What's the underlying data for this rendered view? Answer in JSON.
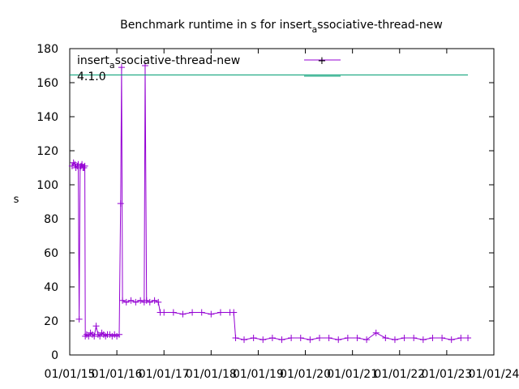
{
  "chart_data": {
    "type": "line",
    "title": {
      "before": "Benchmark runtime in s for insert",
      "sub": "a",
      "after": "ssociative-thread-new"
    },
    "ylabel": "s",
    "xlabel": "",
    "ylim": [
      0,
      180
    ],
    "yticks": [
      "0",
      "20",
      "40",
      "60",
      "80",
      "100",
      "120",
      "140",
      "160",
      "180"
    ],
    "xticks": [
      "01/01/15",
      "01/01/16",
      "01/01/17",
      "01/01/18",
      "01/01/19",
      "01/01/20",
      "01/01/21",
      "01/01/22",
      "01/01/23",
      "01/01/24"
    ],
    "xlim": [
      2015.0,
      2024.0
    ],
    "legend_position": "top-left",
    "series": [
      {
        "name": {
          "before": "insert",
          "sub": "a",
          "after": "ssociative-thread-new"
        },
        "color": "#9400d3",
        "marker": "plus",
        "points": [
          [
            2015.05,
            111
          ],
          [
            2015.08,
            113
          ],
          [
            2015.11,
            112
          ],
          [
            2015.13,
            110
          ],
          [
            2015.16,
            111
          ],
          [
            2015.18,
            112
          ],
          [
            2015.2,
            21
          ],
          [
            2015.22,
            110
          ],
          [
            2015.24,
            111
          ],
          [
            2015.26,
            112
          ],
          [
            2015.28,
            110
          ],
          [
            2015.3,
            110
          ],
          [
            2015.32,
            111
          ],
          [
            2015.33,
            11
          ],
          [
            2015.36,
            12
          ],
          [
            2015.4,
            11
          ],
          [
            2015.44,
            13
          ],
          [
            2015.48,
            12
          ],
          [
            2015.52,
            11
          ],
          [
            2015.56,
            17
          ],
          [
            2015.6,
            12
          ],
          [
            2015.64,
            11
          ],
          [
            2015.68,
            13
          ],
          [
            2015.72,
            12
          ],
          [
            2015.76,
            11
          ],
          [
            2015.8,
            12
          ],
          [
            2015.85,
            12
          ],
          [
            2015.9,
            11
          ],
          [
            2015.95,
            12
          ],
          [
            2016.0,
            11
          ],
          [
            2016.05,
            12
          ],
          [
            2016.08,
            89
          ],
          [
            2016.1,
            169
          ],
          [
            2016.12,
            32
          ],
          [
            2016.2,
            31
          ],
          [
            2016.3,
            32
          ],
          [
            2016.4,
            31
          ],
          [
            2016.5,
            32
          ],
          [
            2016.58,
            31
          ],
          [
            2016.6,
            170
          ],
          [
            2016.63,
            32
          ],
          [
            2016.7,
            31
          ],
          [
            2016.8,
            32
          ],
          [
            2016.88,
            31
          ],
          [
            2016.92,
            25
          ],
          [
            2017.0,
            25
          ],
          [
            2017.2,
            25
          ],
          [
            2017.4,
            24
          ],
          [
            2017.6,
            25
          ],
          [
            2017.8,
            25
          ],
          [
            2018.0,
            24
          ],
          [
            2018.2,
            25
          ],
          [
            2018.4,
            25
          ],
          [
            2018.48,
            25
          ],
          [
            2018.52,
            10
          ],
          [
            2018.7,
            9
          ],
          [
            2018.9,
            10
          ],
          [
            2019.1,
            9
          ],
          [
            2019.3,
            10
          ],
          [
            2019.5,
            9
          ],
          [
            2019.7,
            10
          ],
          [
            2019.9,
            10
          ],
          [
            2020.1,
            9
          ],
          [
            2020.3,
            10
          ],
          [
            2020.5,
            10
          ],
          [
            2020.7,
            9
          ],
          [
            2020.9,
            10
          ],
          [
            2021.1,
            10
          ],
          [
            2021.3,
            9
          ],
          [
            2021.5,
            13
          ],
          [
            2021.7,
            10
          ],
          [
            2021.9,
            9
          ],
          [
            2022.1,
            10
          ],
          [
            2022.3,
            10
          ],
          [
            2022.5,
            9
          ],
          [
            2022.7,
            10
          ],
          [
            2022.9,
            10
          ],
          [
            2023.1,
            9
          ],
          [
            2023.3,
            10
          ],
          [
            2023.45,
            10
          ]
        ]
      },
      {
        "name": {
          "before": "4.1.0",
          "sub": "",
          "after": ""
        },
        "color": "#009e73",
        "marker": "none",
        "points": [
          [
            2015.0,
            164.5
          ],
          [
            2023.45,
            164.5
          ]
        ]
      }
    ]
  }
}
